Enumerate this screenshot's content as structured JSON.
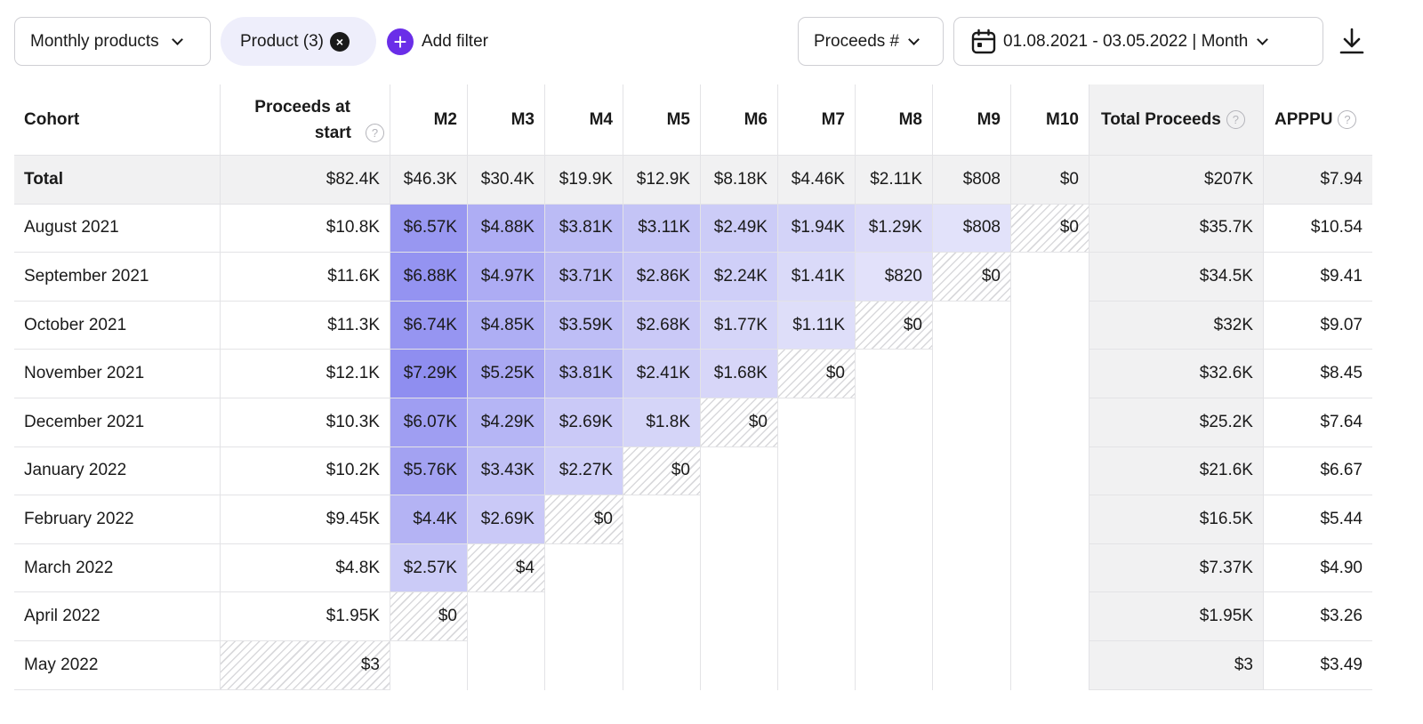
{
  "toolbar": {
    "view_select": "Monthly products",
    "filter_chip": "Product (3)",
    "add_filter": "Add filter",
    "metric_select": "Proceeds #",
    "date_range": "01.08.2021 - 03.05.2022 | Month"
  },
  "table": {
    "headers": {
      "cohort": "Cohort",
      "start_line1": "Proceeds at",
      "start_line2": "start",
      "months": [
        "M2",
        "M3",
        "M4",
        "M5",
        "M6",
        "M7",
        "M8",
        "M9",
        "M10"
      ],
      "total": "Total Proceeds",
      "apppu": "APPPU"
    },
    "total_row": {
      "label": "Total",
      "start": "$82.4K",
      "months": [
        "$46.3K",
        "$30.4K",
        "$19.9K",
        "$12.9K",
        "$8.18K",
        "$4.46K",
        "$2.11K",
        "$808",
        "$0"
      ],
      "total": "$207K",
      "apppu": "$7.94"
    },
    "rows": [
      {
        "cohort": "August 2021",
        "start": "$10.8K",
        "months": [
          "$6.57K",
          "$4.88K",
          "$3.81K",
          "$3.11K",
          "$2.49K",
          "$1.94K",
          "$1.29K",
          "$808",
          "$0"
        ],
        "total": "$35.7K",
        "apppu": "$10.54"
      },
      {
        "cohort": "September 2021",
        "start": "$11.6K",
        "months": [
          "$6.88K",
          "$4.97K",
          "$3.71K",
          "$2.86K",
          "$2.24K",
          "$1.41K",
          "$820",
          "$0"
        ],
        "total": "$34.5K",
        "apppu": "$9.41"
      },
      {
        "cohort": "October 2021",
        "start": "$11.3K",
        "months": [
          "$6.74K",
          "$4.85K",
          "$3.59K",
          "$2.68K",
          "$1.77K",
          "$1.11K",
          "$0"
        ],
        "total": "$32K",
        "apppu": "$9.07"
      },
      {
        "cohort": "November 2021",
        "start": "$12.1K",
        "months": [
          "$7.29K",
          "$5.25K",
          "$3.81K",
          "$2.41K",
          "$1.68K",
          "$0"
        ],
        "total": "$32.6K",
        "apppu": "$8.45"
      },
      {
        "cohort": "December 2021",
        "start": "$10.3K",
        "months": [
          "$6.07K",
          "$4.29K",
          "$2.69K",
          "$1.8K",
          "$0"
        ],
        "total": "$25.2K",
        "apppu": "$7.64"
      },
      {
        "cohort": "January 2022",
        "start": "$10.2K",
        "months": [
          "$5.76K",
          "$3.43K",
          "$2.27K",
          "$0"
        ],
        "total": "$21.6K",
        "apppu": "$6.67"
      },
      {
        "cohort": "February 2022",
        "start": "$9.45K",
        "months": [
          "$4.4K",
          "$2.69K",
          "$0"
        ],
        "total": "$16.5K",
        "apppu": "$5.44"
      },
      {
        "cohort": "March 2022",
        "start": "$4.8K",
        "months": [
          "$2.57K",
          "$4"
        ],
        "total": "$7.37K",
        "apppu": "$4.90"
      },
      {
        "cohort": "April 2022",
        "start": "$1.95K",
        "months": [
          "$0"
        ],
        "total": "$1.95K",
        "apppu": "$3.26"
      },
      {
        "cohort": "May 2022",
        "start": "$3",
        "months": [],
        "total": "$3",
        "apppu": "$3.49"
      }
    ]
  },
  "colors": {
    "accent": "#6a2ee8",
    "heat_max": "#8f8ef0",
    "heat_min": "#ececfb"
  },
  "icons": [
    "chevron-down-icon",
    "close-circle-icon",
    "plus-circle-icon",
    "calendar-icon",
    "download-icon",
    "help-circle-icon"
  ]
}
